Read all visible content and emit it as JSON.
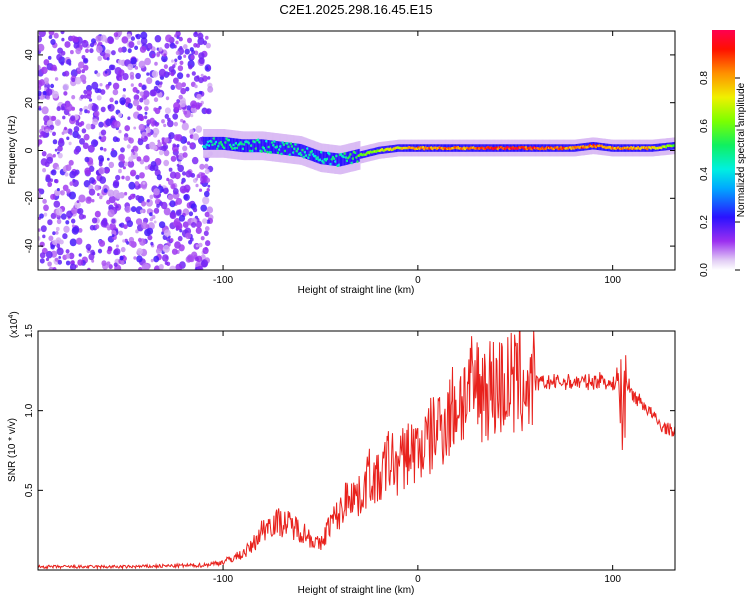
{
  "title": "C2E1.2025.298.16.45.E15",
  "chart_data": [
    {
      "type": "heatmap",
      "name": "spectrogram",
      "xlabel": "Height of straight line (km)",
      "ylabel": "Frequency (Hz)",
      "xlim": [
        -195,
        132
      ],
      "ylim": [
        -50,
        50
      ],
      "xticks": [
        -100,
        0,
        100
      ],
      "yticks": [
        -40,
        -20,
        0,
        20,
        40
      ],
      "colorbar": {
        "label": "Normalized spectral amplitude",
        "range": [
          0,
          1
        ],
        "ticks": [
          "0.0",
          "0.2",
          "0.4",
          "0.6",
          "0.8"
        ],
        "tick_values": [
          0,
          0.2,
          0.4,
          0.6,
          0.8
        ]
      },
      "signal_track": {
        "x": [
          -110,
          -100,
          -90,
          -80,
          -70,
          -60,
          -50,
          -40,
          -30,
          -20,
          -10,
          0,
          10,
          20,
          40,
          60,
          80,
          90,
          100,
          110,
          120,
          132
        ],
        "y": [
          3,
          3,
          2,
          2,
          1,
          0,
          -3,
          -4,
          -2,
          0,
          1,
          1,
          1,
          1,
          1,
          1,
          1,
          2,
          1,
          1,
          1,
          2
        ],
        "amplitude": [
          0.45,
          0.5,
          0.5,
          0.5,
          0.5,
          0.5,
          0.45,
          0.5,
          0.6,
          0.7,
          0.75,
          0.85,
          0.9,
          0.85,
          0.95,
          0.95,
          0.85,
          0.9,
          0.85,
          0.85,
          0.8,
          0.6
        ]
      },
      "noise_region_x": [
        -195,
        -106
      ]
    },
    {
      "type": "line",
      "name": "snr",
      "xlabel": "Height of straight line (km)",
      "ylabel": "SNR (10 * v/v)",
      "scale_label": "(x10",
      "scale_exp": "4",
      "scale_close": ")",
      "xlim": [
        -195,
        132
      ],
      "ylim": [
        0,
        1.5
      ],
      "xticks": [
        -100,
        0,
        100
      ],
      "yticks": [
        0.5,
        1.0,
        1.5
      ],
      "ytick_labels": [
        "0.5",
        "1.0",
        "1.5"
      ],
      "line_color": "#e8211c",
      "series": [
        {
          "name": "SNR",
          "x": [
            -195,
            -150,
            -110,
            -100,
            -90,
            -85,
            -80,
            -75,
            -70,
            -65,
            -60,
            -55,
            -50,
            -45,
            -40,
            -35,
            -30,
            -25,
            -20,
            -15,
            -10,
            -5,
            0,
            5,
            10,
            15,
            20,
            25,
            30,
            35,
            40,
            50,
            60,
            70,
            80,
            90,
            95,
            100,
            103,
            105,
            107,
            110,
            115,
            120,
            125,
            132
          ],
          "y": [
            0.02,
            0.02,
            0.03,
            0.05,
            0.1,
            0.15,
            0.25,
            0.3,
            0.3,
            0.28,
            0.25,
            0.2,
            0.15,
            0.3,
            0.35,
            0.5,
            0.45,
            0.6,
            0.55,
            0.7,
            0.65,
            0.75,
            0.75,
            0.8,
            0.9,
            0.95,
            1.05,
            1.1,
            1.15,
            1.15,
            1.15,
            1.17,
            1.17,
            1.18,
            1.18,
            1.18,
            1.2,
            1.15,
            1.25,
            0.95,
            1.2,
            1.1,
            1.05,
            0.98,
            0.9,
            0.87
          ]
        }
      ]
    }
  ]
}
